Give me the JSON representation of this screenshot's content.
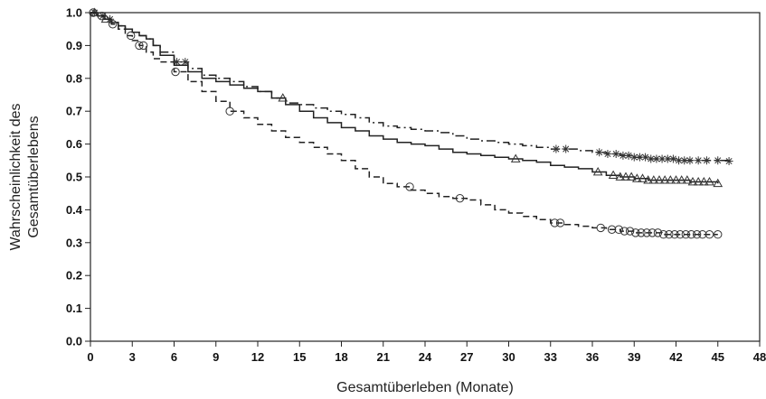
{
  "chart_data": {
    "type": "line",
    "title": "",
    "xlabel": "Gesamtüberleben (Monate)",
    "ylabel": [
      "Wahrscheinlichkeit des",
      "Gesamtüberlebens"
    ],
    "xlim": [
      0,
      48
    ],
    "ylim": [
      0,
      1
    ],
    "xticks": [
      0,
      3,
      6,
      9,
      12,
      15,
      18,
      21,
      24,
      27,
      30,
      33,
      36,
      39,
      42,
      45,
      48
    ],
    "yticks": [
      0.0,
      0.1,
      0.2,
      0.3,
      0.4,
      0.5,
      0.6,
      0.7,
      0.8,
      0.9,
      1.0
    ],
    "ytick_labels": [
      "0.0",
      "0.1",
      "0.2",
      "0.3",
      "0.4",
      "0.5",
      "0.6",
      "0.7",
      "0.8",
      "0.9",
      "1.0"
    ],
    "grid": false,
    "series": [
      {
        "line_style": "dashdot",
        "marker": "asterisk",
        "color": "#222222",
        "x": [
          0,
          0.5,
          1,
          1.5,
          2,
          2.5,
          3,
          3.5,
          4,
          4.5,
          5,
          6,
          7,
          8,
          9,
          10,
          11,
          12,
          13,
          14,
          15,
          16,
          17,
          18,
          19,
          20,
          21,
          22,
          23,
          24,
          25,
          26,
          27,
          28,
          29,
          30,
          31,
          32,
          33,
          34,
          35,
          36,
          37,
          38,
          39,
          40,
          41,
          42,
          43,
          44,
          45,
          45.8
        ],
        "y": [
          1.0,
          0.99,
          0.98,
          0.97,
          0.96,
          0.95,
          0.94,
          0.93,
          0.92,
          0.9,
          0.88,
          0.85,
          0.83,
          0.81,
          0.8,
          0.79,
          0.775,
          0.76,
          0.74,
          0.725,
          0.72,
          0.71,
          0.7,
          0.69,
          0.68,
          0.665,
          0.655,
          0.65,
          0.645,
          0.64,
          0.635,
          0.625,
          0.615,
          0.61,
          0.605,
          0.6,
          0.595,
          0.59,
          0.585,
          0.585,
          0.58,
          0.575,
          0.57,
          0.565,
          0.56,
          0.555,
          0.555,
          0.55,
          0.55,
          0.55,
          0.55,
          0.548
        ],
        "censor_x": [
          0.3,
          0.9,
          1.4,
          6.2,
          6.8,
          33.4,
          34.1,
          36.5,
          37.1,
          37.7,
          38.2,
          38.6,
          39.0,
          39.4,
          39.8,
          40.2,
          40.6,
          41.0,
          41.4,
          41.8,
          42.2,
          42.6,
          43.0,
          43.6,
          44.2,
          45.0,
          45.8
        ]
      },
      {
        "line_style": "solid",
        "marker": "triangle",
        "color": "#222222",
        "x": [
          0,
          0.5,
          1,
          1.5,
          2,
          2.5,
          3,
          3.5,
          4,
          4.5,
          5,
          6,
          7,
          8,
          9,
          10,
          11,
          12,
          13,
          14,
          15,
          16,
          17,
          18,
          19,
          20,
          21,
          22,
          23,
          24,
          25,
          26,
          27,
          28,
          29,
          30,
          31,
          32,
          33,
          34,
          35,
          36,
          37,
          38,
          39,
          40,
          41,
          42,
          43,
          44,
          45
        ],
        "y": [
          1.0,
          0.99,
          0.98,
          0.97,
          0.96,
          0.95,
          0.94,
          0.93,
          0.92,
          0.9,
          0.87,
          0.84,
          0.82,
          0.8,
          0.79,
          0.78,
          0.77,
          0.76,
          0.74,
          0.72,
          0.7,
          0.68,
          0.665,
          0.65,
          0.64,
          0.625,
          0.615,
          0.605,
          0.6,
          0.595,
          0.585,
          0.575,
          0.57,
          0.565,
          0.56,
          0.555,
          0.55,
          0.545,
          0.535,
          0.53,
          0.525,
          0.515,
          0.505,
          0.5,
          0.495,
          0.49,
          0.49,
          0.49,
          0.485,
          0.485,
          0.48
        ],
        "censor_x": [
          0.3,
          1.1,
          13.8,
          30.5,
          36.4,
          37.5,
          38.0,
          38.4,
          38.8,
          39.2,
          39.6,
          40.0,
          40.4,
          40.8,
          41.2,
          41.6,
          42.0,
          42.4,
          42.8,
          43.2,
          43.6,
          44.0,
          44.4,
          45.0
        ]
      },
      {
        "line_style": "dashed",
        "marker": "circle",
        "color": "#222222",
        "x": [
          0,
          0.5,
          1,
          1.5,
          2,
          2.5,
          3,
          3.5,
          4,
          4.5,
          5,
          6,
          7,
          8,
          9,
          10,
          11,
          12,
          13,
          14,
          15,
          16,
          17,
          18,
          19,
          20,
          21,
          22,
          23,
          24,
          25,
          26,
          27,
          28,
          29,
          30,
          31,
          32,
          33,
          34,
          35,
          36,
          37,
          38,
          39,
          40,
          41,
          42,
          43,
          44,
          45
        ],
        "y": [
          1.0,
          0.99,
          0.98,
          0.965,
          0.95,
          0.93,
          0.915,
          0.9,
          0.88,
          0.86,
          0.85,
          0.82,
          0.79,
          0.76,
          0.73,
          0.7,
          0.68,
          0.66,
          0.64,
          0.62,
          0.605,
          0.59,
          0.57,
          0.55,
          0.525,
          0.5,
          0.48,
          0.47,
          0.46,
          0.45,
          0.44,
          0.435,
          0.43,
          0.415,
          0.4,
          0.39,
          0.38,
          0.37,
          0.36,
          0.355,
          0.35,
          0.345,
          0.34,
          0.335,
          0.33,
          0.33,
          0.325,
          0.325,
          0.325,
          0.325,
          0.325
        ],
        "censor_x": [
          0.2,
          0.8,
          1.6,
          2.9,
          3.5,
          3.8,
          6.1,
          10.0,
          22.9,
          26.5,
          33.3,
          33.7,
          36.6,
          37.4,
          37.9,
          38.3,
          38.7,
          39.1,
          39.5,
          39.9,
          40.3,
          40.7,
          41.1,
          41.5,
          41.9,
          42.3,
          42.7,
          43.1,
          43.5,
          43.9,
          44.4,
          45.0
        ]
      }
    ]
  }
}
